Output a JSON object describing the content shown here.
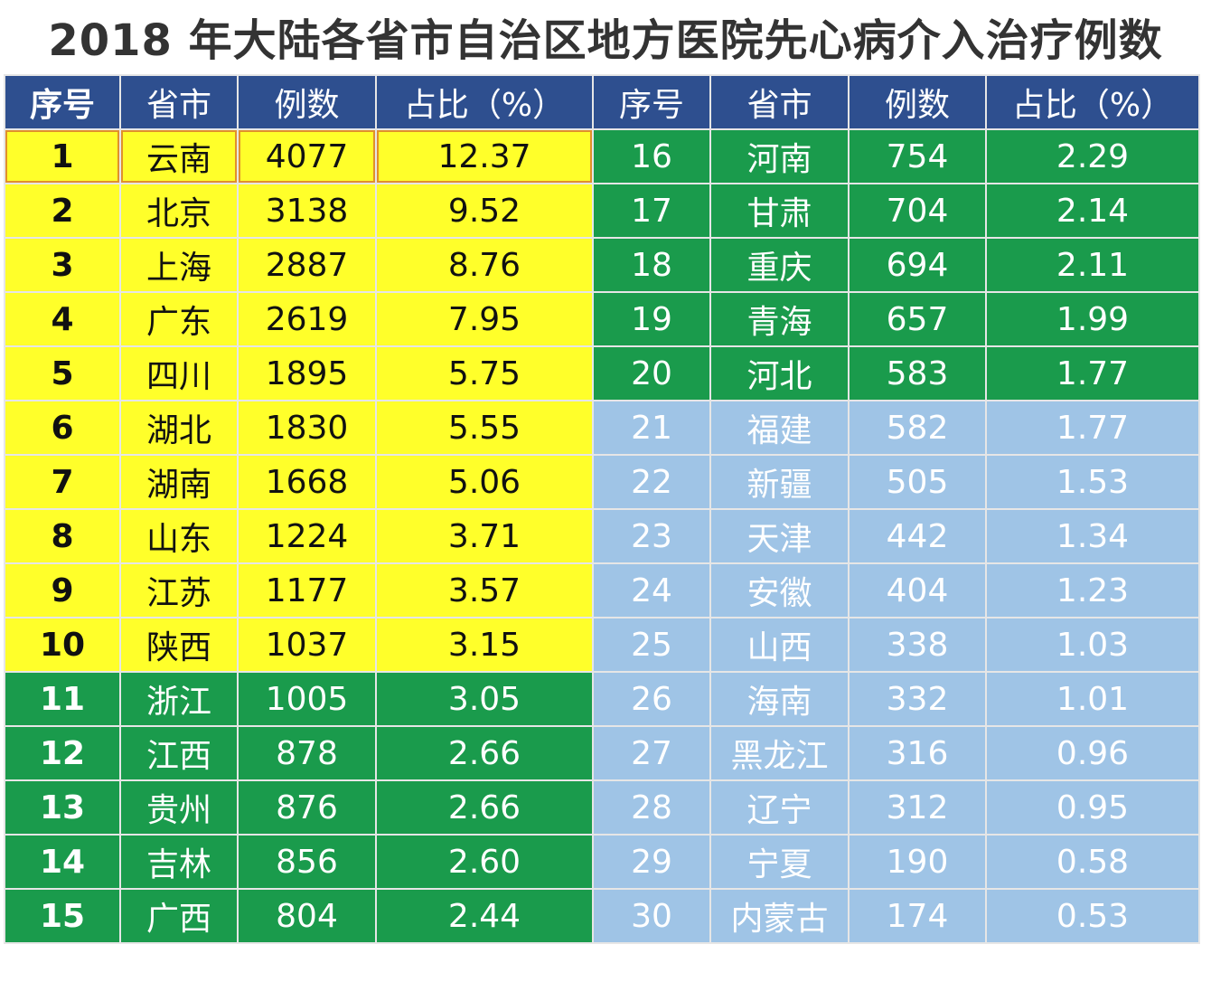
{
  "title": "2018 年大陆各省市自治区地方医院先心病介入治疗例数",
  "headers": [
    "序号",
    "省市",
    "例数",
    "占比（%）",
    "序号",
    "省市",
    "例数",
    "占比（%）"
  ],
  "colors": {
    "header": "#2e4f8f",
    "top10": "#ffff2a",
    "mid": "#1a9b4c",
    "low": "#9fc4e6",
    "highlight_border": "#e0902c"
  },
  "rows": [
    {
      "rank": "1",
      "province": "云南",
      "cases": "4077",
      "pct": "12.37",
      "rank2": "16",
      "province2": "河南",
      "cases2": "754",
      "pct2": "2.29"
    },
    {
      "rank": "2",
      "province": "北京",
      "cases": "3138",
      "pct": "9.52",
      "rank2": "17",
      "province2": "甘肃",
      "cases2": "704",
      "pct2": "2.14"
    },
    {
      "rank": "3",
      "province": "上海",
      "cases": "2887",
      "pct": "8.76",
      "rank2": "18",
      "province2": "重庆",
      "cases2": "694",
      "pct2": "2.11"
    },
    {
      "rank": "4",
      "province": "广东",
      "cases": "2619",
      "pct": "7.95",
      "rank2": "19",
      "province2": "青海",
      "cases2": "657",
      "pct2": "1.99"
    },
    {
      "rank": "5",
      "province": "四川",
      "cases": "1895",
      "pct": "5.75",
      "rank2": "20",
      "province2": "河北",
      "cases2": "583",
      "pct2": "1.77"
    },
    {
      "rank": "6",
      "province": "湖北",
      "cases": "1830",
      "pct": "5.55",
      "rank2": "21",
      "province2": "福建",
      "cases2": "582",
      "pct2": "1.77"
    },
    {
      "rank": "7",
      "province": "湖南",
      "cases": "1668",
      "pct": "5.06",
      "rank2": "22",
      "province2": "新疆",
      "cases2": "505",
      "pct2": "1.53"
    },
    {
      "rank": "8",
      "province": "山东",
      "cases": "1224",
      "pct": "3.71",
      "rank2": "23",
      "province2": "天津",
      "cases2": "442",
      "pct2": "1.34"
    },
    {
      "rank": "9",
      "province": "江苏",
      "cases": "1177",
      "pct": "3.57",
      "rank2": "24",
      "province2": "安徽",
      "cases2": "404",
      "pct2": "1.23"
    },
    {
      "rank": "10",
      "province": "陕西",
      "cases": "1037",
      "pct": "3.15",
      "rank2": "25",
      "province2": "山西",
      "cases2": "338",
      "pct2": "1.03"
    },
    {
      "rank": "11",
      "province": "浙江",
      "cases": "1005",
      "pct": "3.05",
      "rank2": "26",
      "province2": "海南",
      "cases2": "332",
      "pct2": "1.01"
    },
    {
      "rank": "12",
      "province": "江西",
      "cases": "878",
      "pct": "2.66",
      "rank2": "27",
      "province2": "黑龙江",
      "cases2": "316",
      "pct2": "0.96"
    },
    {
      "rank": "13",
      "province": "贵州",
      "cases": "876",
      "pct": "2.66",
      "rank2": "28",
      "province2": "辽宁",
      "cases2": "312",
      "pct2": "0.95"
    },
    {
      "rank": "14",
      "province": "吉林",
      "cases": "856",
      "pct": "2.60",
      "rank2": "29",
      "province2": "宁夏",
      "cases2": "190",
      "pct2": "0.58"
    },
    {
      "rank": "15",
      "province": "广西",
      "cases": "804",
      "pct": "2.44",
      "rank2": "30",
      "province2": "内蒙古",
      "cases2": "174",
      "pct2": "0.53"
    }
  ]
}
